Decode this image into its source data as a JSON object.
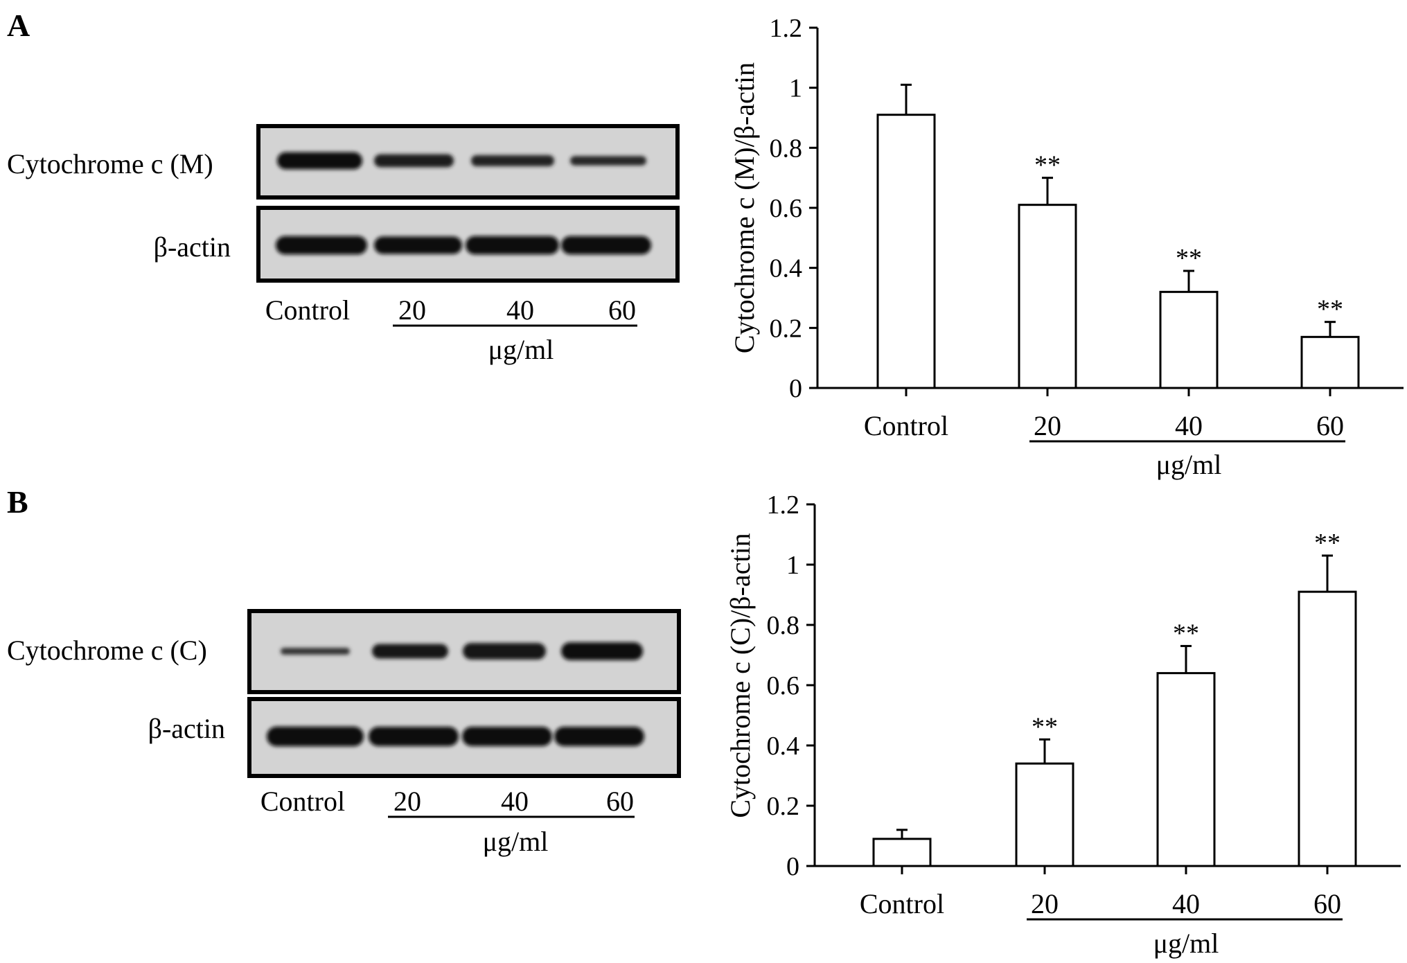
{
  "panels": [
    {
      "letter": "A",
      "blot": {
        "rows": [
          {
            "label": "Cytochrome c (M)",
            "intensities": [
              0.95,
              0.72,
              0.62,
              0.52
            ]
          },
          {
            "label": "β-actin",
            "intensities": [
              0.95,
              0.9,
              0.95,
              0.95
            ]
          }
        ],
        "lanes": [
          "Control",
          "20",
          "40",
          "60"
        ],
        "unit": "μg/ml"
      }
    },
    {
      "letter": "B",
      "blot": {
        "rows": [
          {
            "label": "Cytochrome c (C)",
            "intensities": [
              0.35,
              0.75,
              0.85,
              0.92
            ]
          },
          {
            "label": "β-actin",
            "intensities": [
              0.95,
              0.93,
              0.93,
              0.93
            ]
          }
        ],
        "lanes": [
          "Control",
          "20",
          "40",
          "60"
        ],
        "unit": "μg/ml"
      }
    }
  ],
  "chart_data": [
    {
      "type": "bar",
      "categories": [
        "Control",
        "20",
        "40",
        "60"
      ],
      "values": [
        0.91,
        0.61,
        0.32,
        0.17
      ],
      "errors": [
        0.1,
        0.09,
        0.07,
        0.05
      ],
      "significance": [
        "",
        "**",
        "**",
        "**"
      ],
      "xlabel": "μg/ml",
      "ylabel": "Cytochrome c (M)/β-actin",
      "ylim": [
        0,
        1.2
      ],
      "yticks": [
        "0",
        "0.2",
        "0.4",
        "0.6",
        "0.8",
        "1",
        "1.2"
      ],
      "grid": false
    },
    {
      "type": "bar",
      "categories": [
        "Control",
        "20",
        "40",
        "60"
      ],
      "values": [
        0.09,
        0.34,
        0.64,
        0.91
      ],
      "errors": [
        0.03,
        0.08,
        0.09,
        0.12
      ],
      "significance": [
        "",
        "**",
        "**",
        "**"
      ],
      "xlabel": "μg/ml",
      "ylabel": "Cytochrome c (C)/β-actin",
      "ylim": [
        0,
        1.2
      ],
      "yticks": [
        "0",
        "0.2",
        "0.4",
        "0.6",
        "0.8",
        "1",
        "1.2"
      ],
      "grid": false
    }
  ]
}
